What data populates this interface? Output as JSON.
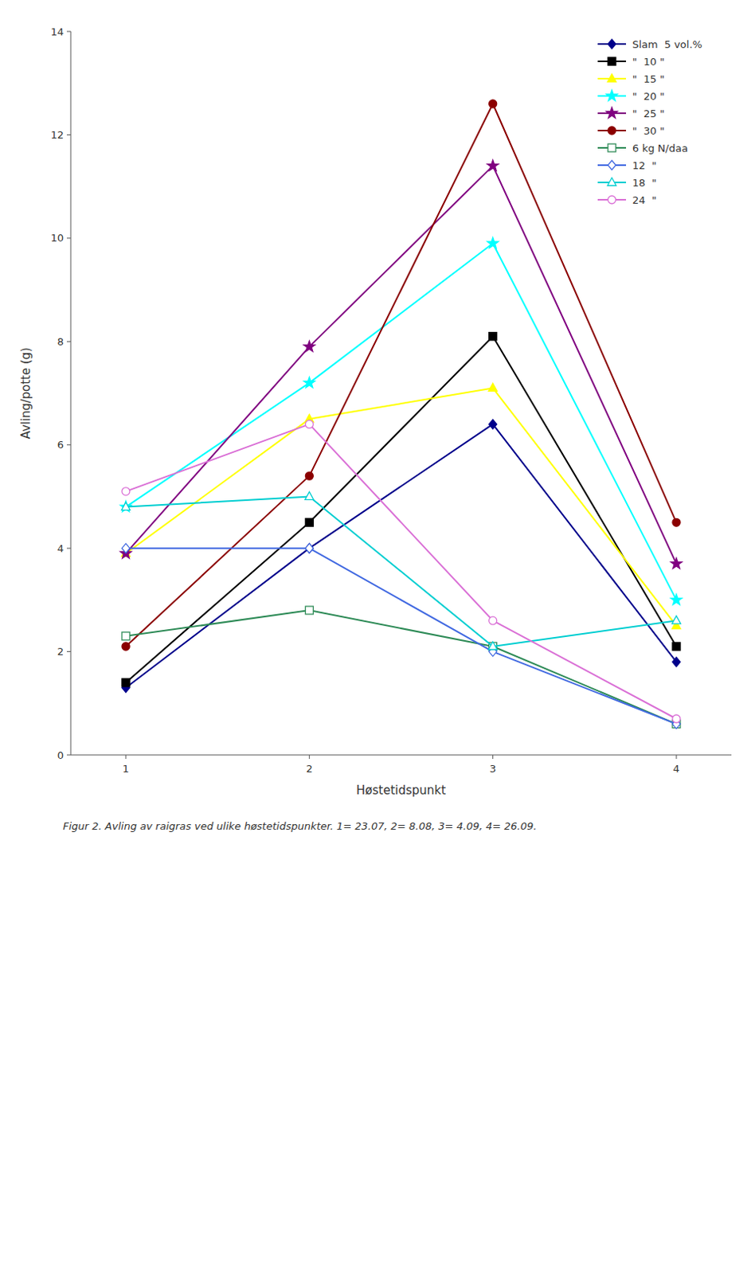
{
  "chart_data": {
    "type": "line",
    "x": [
      1,
      2,
      3,
      4
    ],
    "xlim": [
      0.7,
      4.3
    ],
    "xticks": [
      1,
      2,
      3,
      4
    ],
    "ylim": [
      0,
      14
    ],
    "yticks": [
      0,
      2,
      4,
      6,
      8,
      10,
      12,
      14
    ],
    "xlabel": "Høstetidspunkt",
    "ylabel": "Avling/potte (g)",
    "annotations": [
      "Figur 2. Avling av raigras ved ulike høstetidspunkter. 1= 23.07, 2= 8.08, 3= 4.09, 4= 26.09."
    ],
    "legend": "upper right",
    "grid": false,
    "series": [
      {
        "name": "Slam  5 vol.%",
        "color": "#00008B",
        "marker": "diamond",
        "values": [
          1.3,
          4.0,
          6.4,
          1.8
        ]
      },
      {
        "name": "\"  10 \"",
        "color": "#000000",
        "marker": "square",
        "values": [
          1.4,
          4.5,
          8.1,
          2.1
        ]
      },
      {
        "name": "\"  15 \"",
        "color": "#FFFF00",
        "marker": "triangle",
        "values": [
          3.9,
          6.5,
          7.1,
          2.5
        ]
      },
      {
        "name": "\"  20 \"",
        "color": "#00FFFF",
        "marker": "star",
        "values": [
          4.8,
          7.2,
          9.9,
          3.0
        ]
      },
      {
        "name": "\"  25 \"",
        "color": "#800080",
        "marker": "star",
        "values": [
          3.9,
          7.9,
          11.4,
          3.7
        ]
      },
      {
        "name": "\"  30 \"",
        "color": "#8B0000",
        "marker": "circle",
        "values": [
          2.1,
          5.4,
          12.6,
          4.5
        ]
      },
      {
        "name": "6 kg N/daa",
        "color": "#2E8B57",
        "marker": "square-open",
        "values": [
          2.3,
          2.8,
          2.1,
          0.6
        ]
      },
      {
        "name": "12  \"",
        "color": "#4169E1",
        "marker": "diamond-open",
        "values": [
          4.0,
          4.0,
          2.0,
          0.6
        ]
      },
      {
        "name": "18  \"",
        "color": "#00CED1",
        "marker": "triangle-open",
        "values": [
          4.8,
          5.0,
          2.1,
          2.6
        ]
      },
      {
        "name": "24  \"",
        "color": "#DA70D6",
        "marker": "circle-open",
        "values": [
          5.1,
          6.4,
          2.6,
          0.7
        ]
      }
    ]
  }
}
